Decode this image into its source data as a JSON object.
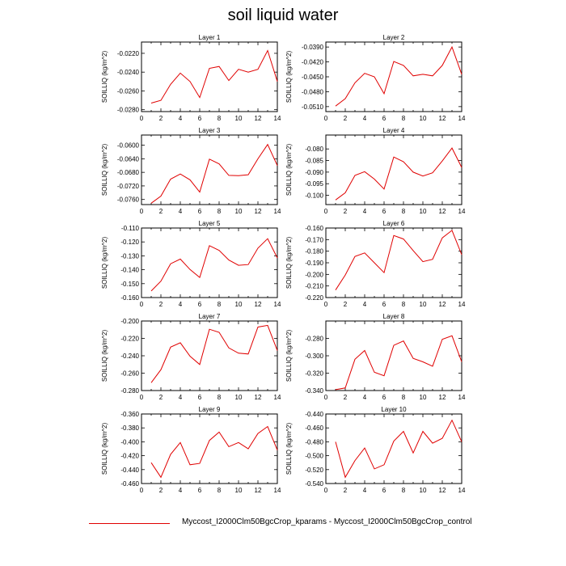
{
  "figure": {
    "title": "soil liquid water",
    "legend": {
      "label": "Myccost_I2000Clm50BgcCrop_kparams - Myccost_I2000Clm50BgcCrop_control",
      "color": "#e00000"
    }
  },
  "chart_data": [
    {
      "type": "line",
      "title": "Layer 1",
      "ylabel": "SOILLIQ  (kg/m^2)",
      "xlim": [
        0,
        14
      ],
      "ylim": [
        -0.0282,
        -0.0208
      ],
      "xticks": [
        0,
        2,
        4,
        6,
        8,
        10,
        12,
        14
      ],
      "yticks": [
        "-0.0220",
        "-0.0240",
        "-0.0260",
        "-0.0280"
      ],
      "x": [
        1,
        2,
        3,
        4,
        5,
        6,
        7,
        8,
        9,
        10,
        11,
        12,
        13,
        14
      ],
      "series": [
        {
          "values": [
            -0.0273,
            -0.027,
            -0.0253,
            -0.0241,
            -0.025,
            -0.0267,
            -0.0236,
            -0.0234,
            -0.0249,
            -0.0237,
            -0.024,
            -0.0237,
            -0.0217,
            -0.025
          ],
          "color": "#e00000"
        }
      ]
    },
    {
      "type": "line",
      "title": "Layer 2",
      "ylabel": "SOILLIQ  (kg/m^2)",
      "xlim": [
        0,
        14
      ],
      "ylim": [
        -0.052,
        -0.038
      ],
      "xticks": [
        0,
        2,
        4,
        6,
        8,
        10,
        12,
        14
      ],
      "yticks": [
        "-0.0390",
        "-0.0420",
        "-0.0450",
        "-0.0480",
        "-0.0510"
      ],
      "x": [
        1,
        2,
        3,
        4,
        5,
        6,
        7,
        8,
        9,
        10,
        11,
        12,
        13,
        14
      ],
      "series": [
        {
          "values": [
            -0.0509,
            -0.0494,
            -0.0462,
            -0.0443,
            -0.045,
            -0.0484,
            -0.0419,
            -0.0427,
            -0.0448,
            -0.0445,
            -0.0448,
            -0.0427,
            -0.039,
            -0.0445
          ],
          "color": "#e00000"
        }
      ]
    },
    {
      "type": "line",
      "title": "Layer 3",
      "ylabel": "SOILLIQ  (kg/m^2)",
      "xlim": [
        0,
        14
      ],
      "ylim": [
        -0.0775,
        -0.057
      ],
      "xticks": [
        0,
        2,
        4,
        6,
        8,
        10,
        12,
        14
      ],
      "yticks": [
        "-0.0600",
        "-0.0640",
        "-0.0680",
        "-0.0720",
        "-0.0760"
      ],
      "x": [
        1,
        2,
        3,
        4,
        5,
        6,
        7,
        8,
        9,
        10,
        11,
        12,
        13,
        14
      ],
      "series": [
        {
          "values": [
            -0.0771,
            -0.075,
            -0.07,
            -0.0685,
            -0.0702,
            -0.0738,
            -0.0641,
            -0.0655,
            -0.0689,
            -0.069,
            -0.0687,
            -0.064,
            -0.0598,
            -0.066
          ],
          "color": "#e00000"
        }
      ]
    },
    {
      "type": "line",
      "title": "Layer 4",
      "ylabel": "SOILLIQ  (kg/m^2)",
      "xlim": [
        0,
        14
      ],
      "ylim": [
        -0.104,
        -0.074
      ],
      "xticks": [
        0,
        2,
        4,
        6,
        8,
        10,
        12,
        14
      ],
      "yticks": [
        "-0.080",
        "-0.085",
        "-0.090",
        "-0.095",
        "-0.100"
      ],
      "x": [
        1,
        2,
        3,
        4,
        5,
        6,
        7,
        8,
        9,
        10,
        11,
        12,
        13,
        14
      ],
      "series": [
        {
          "values": [
            -0.102,
            -0.0989,
            -0.0914,
            -0.0898,
            -0.093,
            -0.0973,
            -0.0835,
            -0.0855,
            -0.09,
            -0.0917,
            -0.0903,
            -0.0852,
            -0.0796,
            -0.088
          ],
          "color": "#e00000"
        }
      ]
    },
    {
      "type": "line",
      "title": "Layer 5",
      "ylabel": "SOILLIQ  (kg/m^2)",
      "xlim": [
        0,
        14
      ],
      "ylim": [
        -0.16,
        -0.11
      ],
      "xticks": [
        0,
        2,
        4,
        6,
        8,
        10,
        12,
        14
      ],
      "yticks": [
        "-0.110",
        "-0.120",
        "-0.130",
        "-0.140",
        "-0.150",
        "-0.160"
      ],
      "x": [
        1,
        2,
        3,
        4,
        5,
        6,
        7,
        8,
        9,
        10,
        11,
        12,
        13,
        14
      ],
      "series": [
        {
          "values": [
            -0.1553,
            -0.1482,
            -0.1357,
            -0.1323,
            -0.1398,
            -0.1455,
            -0.1227,
            -0.1261,
            -0.133,
            -0.1368,
            -0.1363,
            -0.1245,
            -0.1177,
            -0.1315
          ],
          "color": "#e00000"
        }
      ]
    },
    {
      "type": "line",
      "title": "Layer 6",
      "ylabel": "SOILLIQ  (kg/m^2)",
      "xlim": [
        0,
        14
      ],
      "ylim": [
        -0.22,
        -0.16
      ],
      "xticks": [
        0,
        2,
        4,
        6,
        8,
        10,
        12,
        14
      ],
      "yticks": [
        "-0.160",
        "-0.170",
        "-0.180",
        "-0.190",
        "-0.200",
        "-0.210",
        "-0.220"
      ],
      "x": [
        1,
        2,
        3,
        4,
        5,
        6,
        7,
        8,
        9,
        10,
        11,
        12,
        13,
        14
      ],
      "series": [
        {
          "values": [
            -0.2135,
            -0.2005,
            -0.1845,
            -0.1815,
            -0.19,
            -0.1985,
            -0.1665,
            -0.1695,
            -0.1795,
            -0.189,
            -0.187,
            -0.1685,
            -0.162,
            -0.183
          ],
          "color": "#e00000"
        }
      ]
    },
    {
      "type": "line",
      "title": "Layer 7",
      "ylabel": "SOILLIQ  (kg/m^2)",
      "xlim": [
        0,
        14
      ],
      "ylim": [
        -0.28,
        -0.2
      ],
      "xticks": [
        0,
        2,
        4,
        6,
        8,
        10,
        12,
        14
      ],
      "yticks": [
        "-0.200",
        "-0.220",
        "-0.240",
        "-0.260",
        "-0.280"
      ],
      "x": [
        1,
        2,
        3,
        4,
        5,
        6,
        7,
        8,
        9,
        10,
        11,
        12,
        13,
        14
      ],
      "series": [
        {
          "values": [
            -0.271,
            -0.256,
            -0.23,
            -0.225,
            -0.2405,
            -0.25,
            -0.2095,
            -0.213,
            -0.231,
            -0.237,
            -0.238,
            -0.207,
            -0.205,
            -0.234
          ],
          "color": "#e00000"
        }
      ]
    },
    {
      "type": "line",
      "title": "Layer 8",
      "ylabel": "SOILLIQ  (kg/m^2)",
      "xlim": [
        0,
        14
      ],
      "ylim": [
        -0.34,
        -0.26
      ],
      "xticks": [
        0,
        2,
        4,
        6,
        8,
        10,
        12,
        14
      ],
      "yticks": [
        "-0.280",
        "-0.300",
        "-0.320",
        "-0.340"
      ],
      "x": [
        1,
        2,
        3,
        4,
        5,
        6,
        7,
        8,
        9,
        10,
        11,
        12,
        13,
        14
      ],
      "series": [
        {
          "values": [
            -0.339,
            -0.337,
            -0.304,
            -0.294,
            -0.319,
            -0.323,
            -0.288,
            -0.283,
            -0.303,
            -0.307,
            -0.312,
            -0.281,
            -0.277,
            -0.307
          ],
          "color": "#e00000"
        }
      ]
    },
    {
      "type": "line",
      "title": "Layer 9",
      "ylabel": "SOILLIQ  (kg/m^2)",
      "xlim": [
        0,
        14
      ],
      "ylim": [
        -0.46,
        -0.36
      ],
      "xticks": [
        0,
        2,
        4,
        6,
        8,
        10,
        12,
        14
      ],
      "yticks": [
        "-0.360",
        "-0.380",
        "-0.400",
        "-0.420",
        "-0.440",
        "-0.460"
      ],
      "x": [
        1,
        2,
        3,
        4,
        5,
        6,
        7,
        8,
        9,
        10,
        11,
        12,
        13,
        14
      ],
      "series": [
        {
          "values": [
            -0.43,
            -0.451,
            -0.418,
            -0.401,
            -0.433,
            -0.431,
            -0.398,
            -0.386,
            -0.407,
            -0.401,
            -0.41,
            -0.388,
            -0.378,
            -0.412
          ],
          "color": "#e00000"
        }
      ]
    },
    {
      "type": "line",
      "title": "Layer 10",
      "ylabel": "SOILLIQ  (kg/m^2)",
      "xlim": [
        0,
        14
      ],
      "ylim": [
        -0.54,
        -0.44
      ],
      "xticks": [
        0,
        2,
        4,
        6,
        8,
        10,
        12,
        14
      ],
      "yticks": [
        "-0.440",
        "-0.460",
        "-0.480",
        "-0.500",
        "-0.520",
        "-0.540"
      ],
      "x": [
        1,
        2,
        3,
        4,
        5,
        6,
        7,
        8,
        9,
        10,
        11,
        12,
        13,
        14
      ],
      "series": [
        {
          "values": [
            -0.48,
            -0.531,
            -0.507,
            -0.489,
            -0.519,
            -0.513,
            -0.479,
            -0.465,
            -0.496,
            -0.465,
            -0.482,
            -0.475,
            -0.449,
            -0.48
          ],
          "color": "#e00000"
        }
      ]
    }
  ]
}
